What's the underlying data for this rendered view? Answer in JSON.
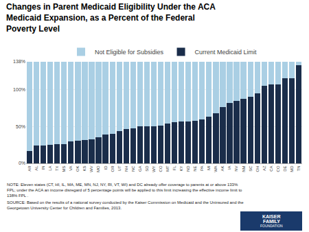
{
  "chart_data": {
    "type": "bar",
    "title": "Changes in Parent Medicaid Eligibility Under the ACA\nMedicaid Expansion, as a Percent of the Federal\nPoverty Level",
    "categories": [
      "AR",
      "AL",
      "IN",
      "LA",
      "TX",
      "MS",
      "VA",
      "OK",
      "KS",
      "WV",
      "MO",
      "ID",
      "OR",
      "UT",
      "NH",
      "NC",
      "GA",
      "SD",
      "WY",
      "CO",
      "MT",
      "FL",
      "KY",
      "ND",
      "NE",
      "PA",
      "MI",
      "WA",
      "AK",
      "IA",
      "NV",
      "NM",
      "SC",
      "OH",
      "AZ",
      "CA",
      "CO",
      "DE",
      "MD",
      "TN"
    ],
    "series": [
      {
        "name": "Current Medicaid Limit",
        "color": "#1a2d4a",
        "values": [
          17,
          24,
          24,
          25,
          26,
          26,
          30,
          31,
          32,
          33,
          35,
          39,
          40,
          44,
          47,
          48,
          50,
          50,
          50,
          51,
          54,
          56,
          57,
          57,
          58,
          60,
          63,
          68,
          76,
          82,
          85,
          88,
          90,
          95,
          105,
          107,
          107,
          116,
          116,
          133
        ]
      },
      {
        "name": "Not Eligible for Subsidies",
        "color": "#aacfe4",
        "values": [
          121,
          114,
          114,
          113,
          112,
          112,
          108,
          107,
          106,
          105,
          103,
          99,
          98,
          94,
          91,
          90,
          88,
          88,
          88,
          87,
          84,
          82,
          81,
          81,
          80,
          78,
          75,
          70,
          62,
          56,
          53,
          50,
          48,
          43,
          33,
          31,
          31,
          22,
          22,
          5
        ]
      }
    ],
    "stacked": true,
    "ylim": [
      0,
      138
    ],
    "yticks": [
      {
        "value": 0,
        "label": "0%"
      },
      {
        "value": 50,
        "label": "50%"
      },
      {
        "value": 100,
        "label": "100%"
      },
      {
        "value": 138,
        "label": "138%"
      }
    ],
    "grid": true,
    "legend": "top",
    "annotations": [
      "NOTE: Eleven states (CT, HI, IL, MA, ME, MN, NJ, NY, RI, VT, WI) and DC already offer coverage to parents at or above 133%\nFPL; under the ACA an income disregard of 5 percentage points will be applied to this limit increasing the effective income limit to\n138% FPL .",
      "SOURCE: Based on the results of a national survey conducted by the Kaiser Commission on Medicaid and the Uninsured and the\nGeorgetown University Center for Children and Families, 2013.",
      "KAISER",
      "FAMILY",
      "FOUNDATION"
    ]
  }
}
